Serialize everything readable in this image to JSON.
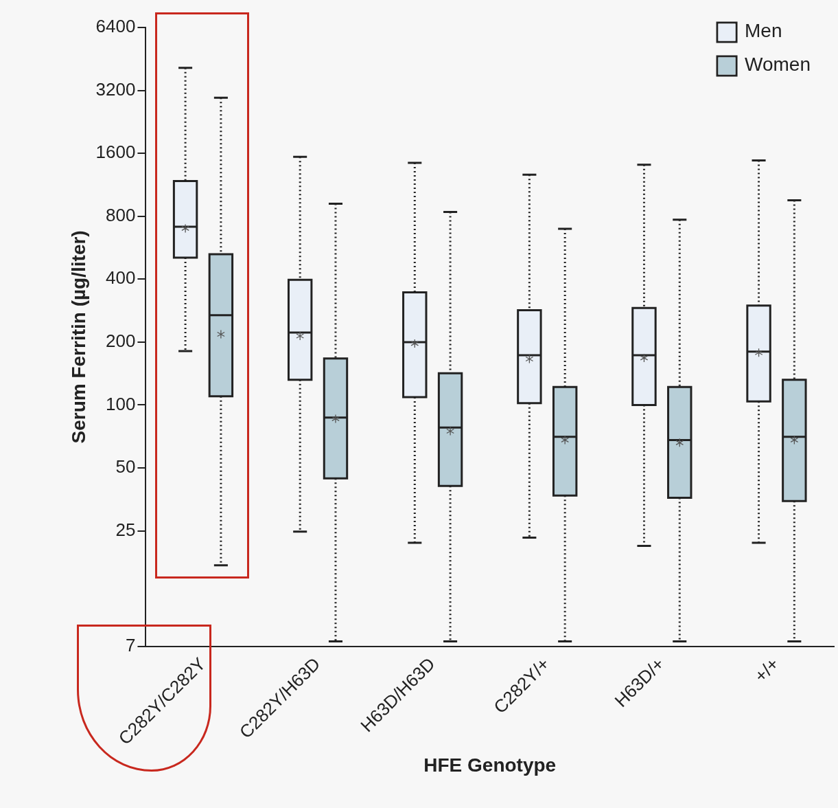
{
  "chart_data": {
    "type": "box",
    "xlabel": "HFE Genotype",
    "ylabel": "Serum Ferritin (µg/liter)",
    "categories": [
      "C282Y/C282Y",
      "C282Y/H63D",
      "H63D/H63D",
      "C282Y/+",
      "H63D/+",
      "+/+"
    ],
    "log": true,
    "ylim": [
      7,
      6400
    ],
    "yticks": [
      7,
      25,
      50,
      100,
      200,
      400,
      800,
      1600,
      3200,
      6400
    ],
    "legend": "top right",
    "marker": "star",
    "series": [
      {
        "name": "Men",
        "color": "#e9eff7",
        "boxes": [
          {
            "low": 181,
            "q1": 507,
            "median": 713,
            "q3": 1180,
            "high": 4100,
            "mean": 700
          },
          {
            "low": 24.8,
            "q1": 132,
            "median": 222,
            "q3": 397,
            "high": 1540,
            "mean": 214
          },
          {
            "low": 21.9,
            "q1": 109,
            "median": 200,
            "q3": 346,
            "high": 1440,
            "mean": 197
          },
          {
            "low": 23.2,
            "q1": 102,
            "median": 173,
            "q3": 284,
            "high": 1265,
            "mean": 166
          },
          {
            "low": 21.2,
            "q1": 100,
            "median": 173,
            "q3": 291,
            "high": 1410,
            "mean": 168
          },
          {
            "low": 21.9,
            "q1": 104,
            "median": 180,
            "q3": 299,
            "high": 1480,
            "mean": 178
          }
        ]
      },
      {
        "name": "Women",
        "color": "#b8cfd8",
        "boxes": [
          {
            "low": 17.1,
            "q1": 110,
            "median": 269,
            "q3": 527,
            "high": 2950,
            "mean": 218
          },
          {
            "low": 7.4,
            "q1": 44.6,
            "median": 87,
            "q3": 167,
            "high": 918,
            "mean": 86
          },
          {
            "low": 7.4,
            "q1": 41,
            "median": 78,
            "q3": 142,
            "high": 838,
            "mean": 75
          },
          {
            "low": 7.4,
            "q1": 36.9,
            "median": 70.5,
            "q3": 122,
            "high": 697,
            "mean": 68
          },
          {
            "low": 7.4,
            "q1": 36,
            "median": 68,
            "q3": 122,
            "high": 770,
            "mean": 66
          },
          {
            "low": 7.4,
            "q1": 34.7,
            "median": 70.5,
            "q3": 132,
            "high": 954,
            "mean": 68
          }
        ]
      }
    ]
  }
}
